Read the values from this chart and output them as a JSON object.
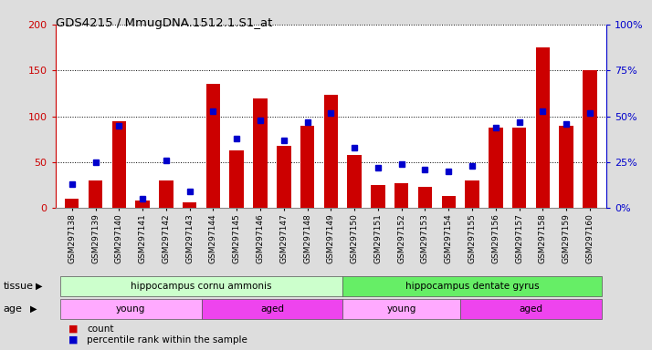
{
  "title": "GDS4215 / MmugDNA.1512.1.S1_at",
  "samples": [
    "GSM297138",
    "GSM297139",
    "GSM297140",
    "GSM297141",
    "GSM297142",
    "GSM297143",
    "GSM297144",
    "GSM297145",
    "GSM297146",
    "GSM297147",
    "GSM297148",
    "GSM297149",
    "GSM297150",
    "GSM297151",
    "GSM297152",
    "GSM297153",
    "GSM297154",
    "GSM297155",
    "GSM297156",
    "GSM297157",
    "GSM297158",
    "GSM297159",
    "GSM297160"
  ],
  "count": [
    10,
    30,
    95,
    8,
    30,
    6,
    135,
    63,
    120,
    68,
    90,
    123,
    58,
    25,
    27,
    23,
    13,
    30,
    88,
    88,
    175,
    90,
    150
  ],
  "percentile": [
    13,
    25,
    45,
    5,
    26,
    9,
    53,
    38,
    48,
    37,
    47,
    52,
    33,
    22,
    24,
    21,
    20,
    23,
    44,
    47,
    53,
    46,
    52
  ],
  "ylim_left": [
    0,
    200
  ],
  "ylim_right": [
    0,
    100
  ],
  "yticks_left": [
    0,
    50,
    100,
    150,
    200
  ],
  "yticks_right": [
    0,
    25,
    50,
    75,
    100
  ],
  "bar_color": "#cc0000",
  "dot_color": "#0000cc",
  "tissue_regions": [
    {
      "label": "hippocampus cornu ammonis",
      "start": 0,
      "end": 11,
      "color": "#ccffcc"
    },
    {
      "label": "hippocampus dentate gyrus",
      "start": 12,
      "end": 22,
      "color": "#66ee66"
    }
  ],
  "age_regions": [
    {
      "label": "young",
      "start": 0,
      "end": 5,
      "color": "#ffaaff"
    },
    {
      "label": "aged",
      "start": 6,
      "end": 11,
      "color": "#ee44ee"
    },
    {
      "label": "young",
      "start": 12,
      "end": 16,
      "color": "#ffaaff"
    },
    {
      "label": "aged",
      "start": 17,
      "end": 22,
      "color": "#ee44ee"
    }
  ],
  "legend_count_color": "#cc0000",
  "legend_pct_color": "#0000cc",
  "fig_bg": "#dddddd",
  "plot_bg": "#ffffff",
  "tissue_label": "tissue",
  "age_label": "age",
  "left_axis_color": "#cc0000",
  "right_axis_color": "#0000cc",
  "left_label": "left_ax_x",
  "fig_w": 7.14,
  "fig_h": 3.84,
  "dpi": 100
}
